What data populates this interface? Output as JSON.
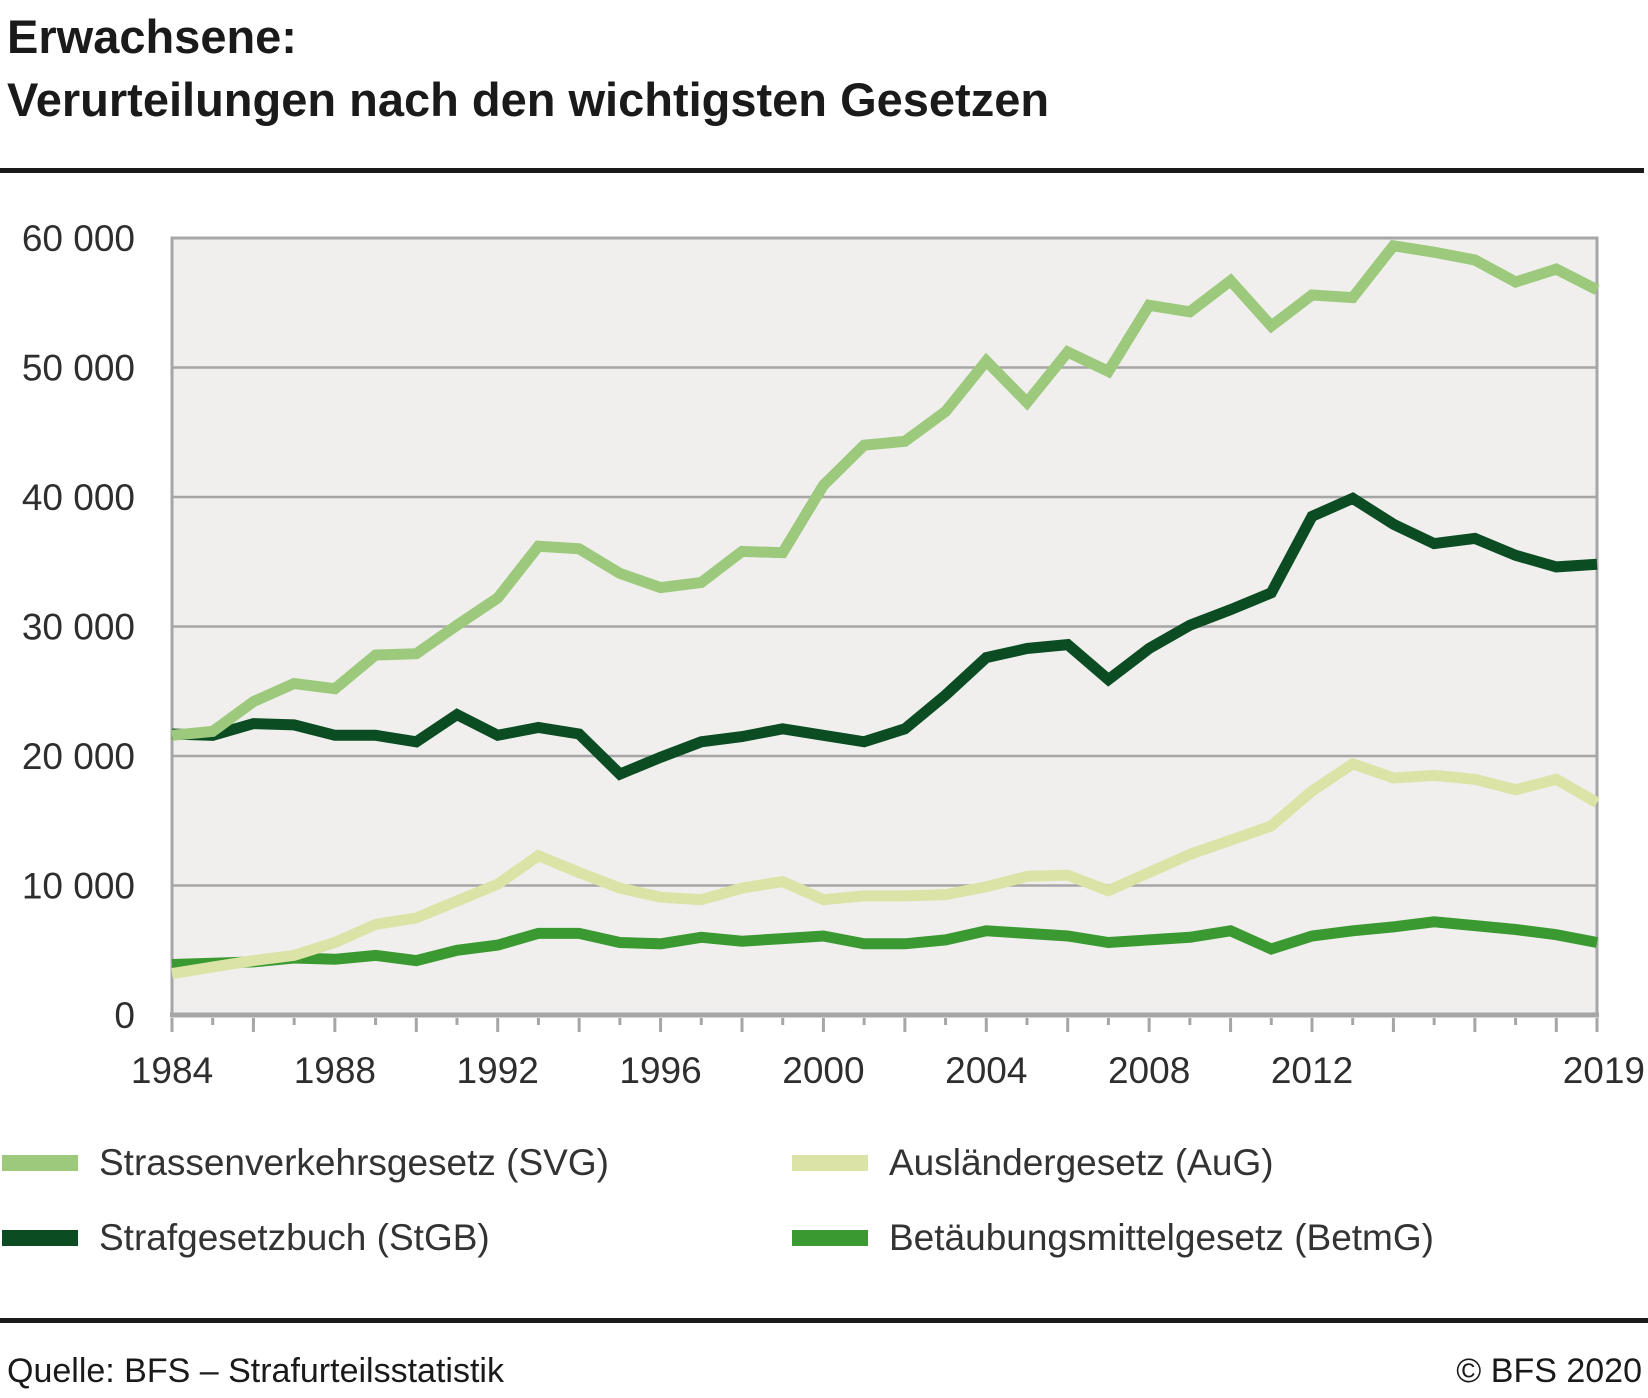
{
  "page": {
    "title_line1": "Erwachsene:",
    "title_line2": "Verurteilungen nach den wichtigsten Gesetzen",
    "source_label": "Quelle: BFS – Strafurteilsstatistik",
    "copyright_label": "© BFS 2020"
  },
  "chart_data": {
    "type": "line",
    "title": "Erwachsene: Verurteilungen nach den wichtigsten Gesetzen",
    "xlabel": "",
    "ylabel": "",
    "x_start": 1984,
    "x_end": 2019,
    "x_tick_labels": [
      1984,
      1988,
      1992,
      1996,
      2000,
      2004,
      2008,
      2012,
      2019
    ],
    "ylim": [
      0,
      60000
    ],
    "ytick_step": 10000,
    "y_ticks": [
      {
        "value": 0,
        "label": "0"
      },
      {
        "value": 10000,
        "label": "10 000"
      },
      {
        "value": 20000,
        "label": "20 000"
      },
      {
        "value": 30000,
        "label": "30 000"
      },
      {
        "value": 40000,
        "label": "40 000"
      },
      {
        "value": 50000,
        "label": "50 000"
      },
      {
        "value": 60000,
        "label": "60 000"
      }
    ],
    "grid": "horizontal-only",
    "legend_position": "bottom-two-columns",
    "plot_bg_color": "#f0efed",
    "axis_color": "#a6a6a6",
    "series": [
      {
        "name": "Strassenverkehrsgesetz (SVG)",
        "color": "#9dc97c",
        "values": [
          21600,
          21900,
          24200,
          25600,
          25200,
          27800,
          27900,
          30100,
          32200,
          36200,
          36000,
          34100,
          33000,
          33400,
          35800,
          35700,
          40900,
          44000,
          44300,
          46600,
          50500,
          47300,
          51200,
          49700,
          54800,
          54300,
          56700,
          53200,
          55600,
          55400,
          59400,
          58900,
          58300,
          56600,
          57600,
          56000
        ]
      },
      {
        "name": "Strafgesetzbuch (StGB)",
        "color": "#0b4c22",
        "values": [
          21700,
          21600,
          22500,
          22400,
          21600,
          21600,
          21100,
          23200,
          21600,
          22200,
          21700,
          18600,
          19900,
          21100,
          21500,
          22100,
          21600,
          21100,
          22100,
          24700,
          27600,
          28300,
          28600,
          25900,
          28300,
          30100,
          31300,
          32600,
          38500,
          39900,
          37900,
          36400,
          36800,
          35500,
          34600,
          34800
        ]
      },
      {
        "name": "Ausländergesetz (AuG)",
        "color": "#dbe4a6",
        "values": [
          3200,
          3700,
          4200,
          4600,
          5600,
          7000,
          7500,
          8800,
          10100,
          12300,
          11000,
          9800,
          9100,
          8900,
          9800,
          10300,
          8900,
          9200,
          9200,
          9300,
          9900,
          10700,
          10800,
          9600,
          11000,
          12400,
          13500,
          14600,
          17300,
          19400,
          18300,
          18500,
          18200,
          17400,
          18200,
          16400
        ]
      },
      {
        "name": "Betäubungsmittelgesetz (BetmG)",
        "color": "#3b9931",
        "values": [
          3900,
          4000,
          4100,
          4400,
          4300,
          4600,
          4200,
          5000,
          5400,
          6300,
          6300,
          5600,
          5500,
          6000,
          5700,
          5900,
          6100,
          5500,
          5500,
          5800,
          6500,
          6300,
          6100,
          5600,
          5800,
          6000,
          6500,
          5100,
          6100,
          6500,
          6800,
          7200,
          6900,
          6600,
          6200,
          5600
        ]
      }
    ]
  }
}
